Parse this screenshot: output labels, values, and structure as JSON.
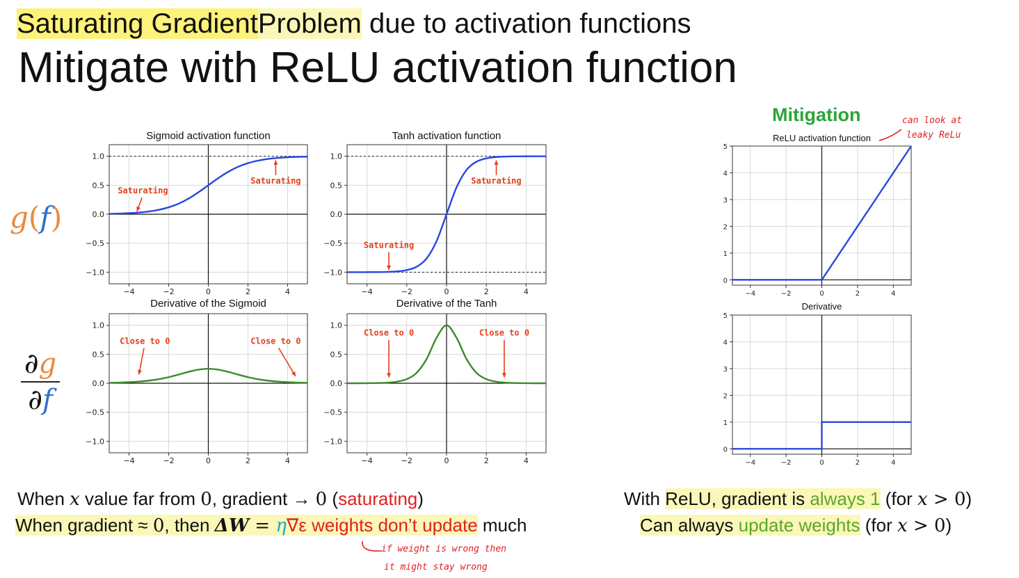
{
  "header": {
    "title_part1": "Saturating Gradient",
    "title_part2": "Problem",
    "title_part3": " due to activation functions",
    "subtitle": "Mitigate with ReLU activation function"
  },
  "side_labels": {
    "g": "g",
    "f": "f",
    "open_paren": "(",
    "close_paren": ")",
    "partial_g": "∂g",
    "partial_f": "∂f"
  },
  "mitigation_label": "Mitigation",
  "handwritten_note_relu": [
    "can look at",
    "leaky ReLu"
  ],
  "handwritten_note_bottom": [
    "if weight is wrong then",
    "it might stay wrong"
  ],
  "colors": {
    "curve_blue": "#2846e0",
    "curve_green": "#3b8a2a",
    "annotation_red": "#e0401c",
    "highlight": "#fdf27a",
    "mitigation_green": "#2ca43a"
  },
  "bottom_left": {
    "line1": {
      "a": "When ",
      "x": "x",
      "b": " value far from ",
      "zero": "0",
      "c": ", gradient → ",
      "zero2": "0",
      "d": " (",
      "sat": "saturating",
      "e": ")"
    },
    "line2": {
      "a": "When gradient ≈ ",
      "zero": "0",
      "b": ", then ",
      "dw": "ΔW",
      "eq": " = ",
      "eta": "η",
      "grad": "∇ε weights don’t update",
      "c": " much"
    }
  },
  "bottom_right": {
    "line1": {
      "a": "With ",
      "b": "ReLU, gradient is ",
      "always": "always 1",
      "c": " (for ",
      "x": "x",
      "d": " > ",
      "zero": "0",
      "e": ")"
    },
    "line2": {
      "a": "Can always ",
      "upd": "update weights",
      "b": " (for ",
      "x": "x",
      "c": " > ",
      "zero": "0",
      "d": ")"
    }
  },
  "chart_data": [
    {
      "type": "line",
      "title": "Sigmoid activation function",
      "function": "sigmoid",
      "xlim": [
        -5,
        5
      ],
      "ylim": [
        -1.2,
        1.2
      ],
      "xticks": [
        -4,
        -2,
        0,
        2,
        4
      ],
      "yticks": [
        -1.0,
        -0.5,
        0.0,
        0.5,
        1.0
      ],
      "ytick_labels": [
        "−1.0",
        "−0.5",
        "0.0",
        "0.5",
        "1.0"
      ],
      "xtick_labels": [
        "−4",
        "−2",
        "0",
        "2",
        "4"
      ],
      "x": [
        -5,
        -4.5,
        -4,
        -3.5,
        -3,
        -2.5,
        -2,
        -1.5,
        -1,
        -0.5,
        0,
        0.5,
        1,
        1.5,
        2,
        2.5,
        3,
        3.5,
        4,
        4.5,
        5
      ],
      "y": [
        0.007,
        0.011,
        0.018,
        0.029,
        0.047,
        0.076,
        0.119,
        0.182,
        0.269,
        0.378,
        0.5,
        0.622,
        0.731,
        0.818,
        0.881,
        0.924,
        0.953,
        0.971,
        0.982,
        0.989,
        0.993
      ],
      "dashed_lines": [
        1.0
      ],
      "annotations": [
        {
          "text": "Saturating",
          "x": -3.3,
          "y": 0.36,
          "arrow_to": [
            -3.6,
            0.05
          ]
        },
        {
          "text": "Saturating",
          "x": 3.4,
          "y": 0.53,
          "arrow_to": [
            3.4,
            0.93
          ]
        }
      ]
    },
    {
      "type": "line",
      "title": "Tanh activation function",
      "function": "tanh",
      "xlim": [
        -5,
        5
      ],
      "ylim": [
        -1.2,
        1.2
      ],
      "xticks": [
        -4,
        -2,
        0,
        2,
        4
      ],
      "yticks": [
        -1.0,
        -0.5,
        0.0,
        0.5,
        1.0
      ],
      "ytick_labels": [
        "−1.0",
        "−0.5",
        "0.0",
        "0.5",
        "1.0"
      ],
      "xtick_labels": [
        "−4",
        "−2",
        "0",
        "2",
        "4"
      ],
      "x": [
        -5,
        -4.5,
        -4,
        -3.5,
        -3,
        -2.5,
        -2,
        -1.5,
        -1,
        -0.5,
        0,
        0.5,
        1,
        1.5,
        2,
        2.5,
        3,
        3.5,
        4,
        4.5,
        5
      ],
      "y": [
        -1.0,
        -1.0,
        -0.999,
        -0.998,
        -0.995,
        -0.987,
        -0.964,
        -0.905,
        -0.762,
        -0.462,
        0,
        0.462,
        0.762,
        0.905,
        0.964,
        0.987,
        0.995,
        0.998,
        0.999,
        1.0,
        1.0
      ],
      "dashed_lines": [
        1.0,
        -1.0
      ],
      "annotations": [
        {
          "text": "Saturating",
          "x": 2.5,
          "y": 0.53,
          "arrow_to": [
            2.5,
            0.93
          ]
        },
        {
          "text": "Saturating",
          "x": -2.9,
          "y": -0.58,
          "arrow_to": [
            -2.9,
            -0.96
          ]
        }
      ]
    },
    {
      "type": "line",
      "title": "Derivative of the Sigmoid",
      "function": "sigmoid_derivative",
      "xlim": [
        -5,
        5
      ],
      "ylim": [
        -1.2,
        1.2
      ],
      "xticks": [
        -4,
        -2,
        0,
        2,
        4
      ],
      "yticks": [
        -1.0,
        -0.5,
        0.0,
        0.5,
        1.0
      ],
      "ytick_labels": [
        "−1.0",
        "−0.5",
        "0.0",
        "0.5",
        "1.0"
      ],
      "xtick_labels": [
        "−4",
        "−2",
        "0",
        "2",
        "4"
      ],
      "x": [
        -5,
        -4.5,
        -4,
        -3.5,
        -3,
        -2.5,
        -2,
        -1.5,
        -1,
        -0.5,
        0,
        0.5,
        1,
        1.5,
        2,
        2.5,
        3,
        3.5,
        4,
        4.5,
        5
      ],
      "y": [
        0.007,
        0.011,
        0.018,
        0.029,
        0.045,
        0.07,
        0.105,
        0.149,
        0.197,
        0.235,
        0.25,
        0.235,
        0.197,
        0.149,
        0.105,
        0.07,
        0.045,
        0.029,
        0.018,
        0.011,
        0.007
      ],
      "annotations": [
        {
          "text": "Close to 0",
          "x": -3.2,
          "y": 0.68,
          "arrow_to": [
            -3.5,
            0.15
          ]
        },
        {
          "text": "Close to 0",
          "x": 3.4,
          "y": 0.68,
          "arrow_to": [
            4.4,
            0.12
          ]
        }
      ]
    },
    {
      "type": "line",
      "title": "Derivative of the Tanh",
      "function": "tanh_derivative",
      "xlim": [
        -5,
        5
      ],
      "ylim": [
        -1.2,
        1.2
      ],
      "xticks": [
        -4,
        -2,
        0,
        2,
        4
      ],
      "yticks": [
        -1.0,
        -0.5,
        0.0,
        0.5,
        1.0
      ],
      "ytick_labels": [
        "−1.0",
        "−0.5",
        "0.0",
        "0.5",
        "1.0"
      ],
      "xtick_labels": [
        "−4",
        "−2",
        "0",
        "2",
        "4"
      ],
      "x": [
        -5,
        -4.5,
        -4,
        -3.5,
        -3,
        -2.5,
        -2,
        -1.5,
        -1,
        -0.5,
        0,
        0.5,
        1,
        1.5,
        2,
        2.5,
        3,
        3.5,
        4,
        4.5,
        5
      ],
      "y": [
        0,
        0,
        0.001,
        0.004,
        0.01,
        0.027,
        0.071,
        0.181,
        0.42,
        0.786,
        1.0,
        0.786,
        0.42,
        0.181,
        0.071,
        0.027,
        0.01,
        0.004,
        0.001,
        0,
        0
      ],
      "annotations": [
        {
          "text": "Close to 0",
          "x": -2.9,
          "y": 0.82,
          "arrow_to": [
            -2.9,
            0.1
          ]
        },
        {
          "text": "Close to 0",
          "x": 2.9,
          "y": 0.82,
          "arrow_to": [
            2.9,
            0.1
          ]
        }
      ]
    },
    {
      "type": "line",
      "title": "ReLU activation function",
      "function": "relu",
      "xlim": [
        -5,
        5
      ],
      "ylim": [
        -0.2,
        5
      ],
      "xticks": [
        -4,
        -2,
        0,
        2,
        4
      ],
      "yticks": [
        0,
        1,
        2,
        3,
        4,
        5
      ],
      "ytick_labels": [
        "0",
        "1",
        "2",
        "3",
        "4",
        "5"
      ],
      "xtick_labels": [
        "−4",
        "−2",
        "0",
        "2",
        "4"
      ],
      "x": [
        -5,
        0,
        5
      ],
      "y": [
        0,
        0,
        5
      ]
    },
    {
      "type": "line",
      "title": "Derivative",
      "function": "relu_derivative",
      "xlim": [
        -5,
        5
      ],
      "ylim": [
        -0.2,
        5
      ],
      "xticks": [
        -4,
        -2,
        0,
        2,
        4
      ],
      "yticks": [
        0,
        1,
        2,
        3,
        4,
        5
      ],
      "ytick_labels": [
        "0",
        "1",
        "2",
        "3",
        "4",
        "5"
      ],
      "xtick_labels": [
        "−4",
        "−2",
        "0",
        "2",
        "4"
      ],
      "x": [
        -5,
        0,
        0,
        5
      ],
      "y": [
        0,
        0,
        1,
        1
      ]
    }
  ]
}
